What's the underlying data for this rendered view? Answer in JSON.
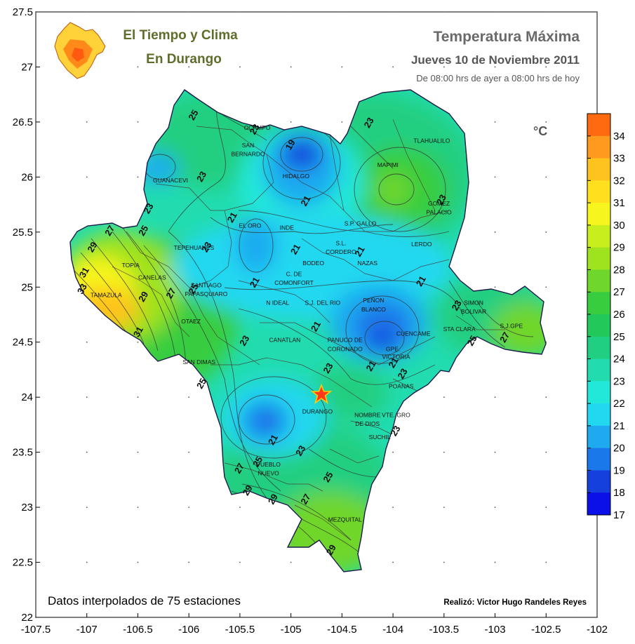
{
  "header": {
    "brand_line1": "El Tiempo y Clima",
    "brand_line2": "En Durango",
    "title": "Temperatura  Máxima",
    "date": "Jueves 10 de Noviembre 2011",
    "period": "De 08:00 hrs de ayer a 08:00 hrs de hoy",
    "unit": "°C"
  },
  "footer": {
    "stations_note": "Datos interpolados de 75 estaciones",
    "credit": "Realizó: Victor Hugo Randeles Reyes"
  },
  "axes": {
    "x_ticks": [
      "-107.5",
      "-107",
      "-106.5",
      "-106",
      "-105.5",
      "-105",
      "-104.5",
      "-104",
      "-103.5",
      "-103",
      "-102.5",
      "-102"
    ],
    "y_ticks": [
      "27.5",
      "27",
      "26.5",
      "26",
      "25.5",
      "25",
      "24.5",
      "24",
      "23.5",
      "23",
      "22.5",
      "22"
    ]
  },
  "colorbar": {
    "labels": [
      "34",
      "33",
      "32",
      "31",
      "30",
      "29",
      "28",
      "27",
      "26",
      "25",
      "24",
      "23",
      "22",
      "21",
      "20",
      "19",
      "18",
      "17"
    ],
    "colors": [
      "#ff6a10",
      "#ff9a1e",
      "#ffc31f",
      "#ffe01e",
      "#f7f51e",
      "#c9ee1e",
      "#9fe21e",
      "#6fd62c",
      "#38cd3f",
      "#22c95a",
      "#20cf81",
      "#22dcb0",
      "#22e8da",
      "#22d8f0",
      "#1faaf0",
      "#1a78ea",
      "#1640dc",
      "#0c10e8"
    ],
    "values": [
      34,
      33,
      32,
      31,
      30,
      29,
      28,
      27,
      26,
      25,
      24,
      23,
      22,
      21,
      20,
      19,
      18,
      17
    ]
  },
  "map": {
    "region": "Durango",
    "capital_icon": "star-icon",
    "municipalities": [
      {
        "name": "OCAMPO",
        "lon": -105.33,
        "lat": 26.43
      },
      {
        "name": "SAN",
        "lon": -105.42,
        "lat": 26.27
      },
      {
        "name": "BERNARDO",
        "lon": -105.42,
        "lat": 26.19
      },
      {
        "name": "HIDALGO",
        "lon": -104.95,
        "lat": 25.99
      },
      {
        "name": "GUANACEVI",
        "lon": -106.18,
        "lat": 25.95
      },
      {
        "name": "TLAHUALILO",
        "lon": -103.62,
        "lat": 26.31
      },
      {
        "name": "MAPIMI",
        "lon": -104.05,
        "lat": 26.09
      },
      {
        "name": "GOMEZ",
        "lon": -103.55,
        "lat": 25.74
      },
      {
        "name": "PALACIO",
        "lon": -103.55,
        "lat": 25.66
      },
      {
        "name": "S.P. GALLO",
        "lon": -104.32,
        "lat": 25.56
      },
      {
        "name": "EL ORO",
        "lon": -105.4,
        "lat": 25.54
      },
      {
        "name": "INDE",
        "lon": -105.04,
        "lat": 25.52
      },
      {
        "name": "TEPEHUANES",
        "lon": -105.95,
        "lat": 25.34
      },
      {
        "name": "S.L.",
        "lon": -104.51,
        "lat": 25.38
      },
      {
        "name": "CORDERO",
        "lon": -104.51,
        "lat": 25.3
      },
      {
        "name": "LERDO",
        "lon": -103.72,
        "lat": 25.37
      },
      {
        "name": "TOPIA",
        "lon": -106.57,
        "lat": 25.18
      },
      {
        "name": "BODEO",
        "lon": -104.78,
        "lat": 25.2
      },
      {
        "name": "NAZAS",
        "lon": -104.25,
        "lat": 25.2
      },
      {
        "name": "C. DE",
        "lon": -104.97,
        "lat": 25.1
      },
      {
        "name": "COMONFORT",
        "lon": -104.97,
        "lat": 25.02
      },
      {
        "name": "CANELAS",
        "lon": -106.36,
        "lat": 25.07
      },
      {
        "name": "SANTIAGO",
        "lon": -105.83,
        "lat": 25.0
      },
      {
        "name": "PAPASQUIARO",
        "lon": -105.83,
        "lat": 24.92
      },
      {
        "name": "TAMAZULA",
        "lon": -106.81,
        "lat": 24.91
      },
      {
        "name": "N IDEAL",
        "lon": -105.13,
        "lat": 24.84
      },
      {
        "name": "S.J. DEL RIO",
        "lon": -104.69,
        "lat": 24.84
      },
      {
        "name": "PEÑON",
        "lon": -104.19,
        "lat": 24.86
      },
      {
        "name": "BLANCO",
        "lon": -104.19,
        "lat": 24.78
      },
      {
        "name": "SIMON",
        "lon": -103.21,
        "lat": 24.84
      },
      {
        "name": "BOLIVAR",
        "lon": -103.21,
        "lat": 24.76
      },
      {
        "name": "OTAEZ",
        "lon": -105.98,
        "lat": 24.67
      },
      {
        "name": "STA CLARA",
        "lon": -103.35,
        "lat": 24.6
      },
      {
        "name": "S.J.GPE",
        "lon": -102.84,
        "lat": 24.63
      },
      {
        "name": "CUENCAME",
        "lon": -103.8,
        "lat": 24.56
      },
      {
        "name": "CANATLAN",
        "lon": -105.06,
        "lat": 24.5
      },
      {
        "name": "PANUCO DE",
        "lon": -104.47,
        "lat": 24.5
      },
      {
        "name": "CORONADO",
        "lon": -104.47,
        "lat": 24.42
      },
      {
        "name": "GPE.",
        "lon": -104.0,
        "lat": 24.42
      },
      {
        "name": "VICTORIA",
        "lon": -103.97,
        "lat": 24.35
      },
      {
        "name": "SAN DIMAS",
        "lon": -105.9,
        "lat": 24.3
      },
      {
        "name": "POANAS",
        "lon": -103.92,
        "lat": 24.08
      },
      {
        "name": "DURANGO",
        "lon": -104.74,
        "lat": 23.85
      },
      {
        "name": "NOMBRE",
        "lon": -104.25,
        "lat": 23.82
      },
      {
        "name": "DE DIOS",
        "lon": -104.25,
        "lat": 23.74
      },
      {
        "name": "VTE. GRO",
        "lon": -103.97,
        "lat": 23.82
      },
      {
        "name": "SUCHIL",
        "lon": -104.13,
        "lat": 23.62
      },
      {
        "name": "PUEBLO",
        "lon": -105.22,
        "lat": 23.37
      },
      {
        "name": "NUEVO",
        "lon": -105.22,
        "lat": 23.29
      },
      {
        "name": "MEZQUITAL",
        "lon": -104.47,
        "lat": 22.87
      }
    ],
    "isotherm_labels": [
      {
        "text": "25",
        "lon": -105.93,
        "lat": 26.55
      },
      {
        "text": "23",
        "lon": -105.33,
        "lat": 26.42
      },
      {
        "text": "19",
        "lon": -104.98,
        "lat": 26.28
      },
      {
        "text": "23",
        "lon": -104.21,
        "lat": 26.48
      },
      {
        "text": "23",
        "lon": -105.85,
        "lat": 25.99
      },
      {
        "text": "23",
        "lon": -106.37,
        "lat": 25.7
      },
      {
        "text": "21",
        "lon": -104.83,
        "lat": 25.77
      },
      {
        "text": "21",
        "lon": -105.55,
        "lat": 25.62
      },
      {
        "text": "23",
        "lon": -103.5,
        "lat": 25.78
      },
      {
        "text": "25",
        "lon": -106.42,
        "lat": 25.5
      },
      {
        "text": "27",
        "lon": -106.75,
        "lat": 25.5
      },
      {
        "text": "29",
        "lon": -106.92,
        "lat": 25.35
      },
      {
        "text": "31",
        "lon": -107.0,
        "lat": 25.12
      },
      {
        "text": "33",
        "lon": -107.02,
        "lat": 24.97
      },
      {
        "text": "29",
        "lon": -106.42,
        "lat": 24.9
      },
      {
        "text": "27",
        "lon": -106.15,
        "lat": 24.93
      },
      {
        "text": "25",
        "lon": -105.93,
        "lat": 24.97
      },
      {
        "text": "23",
        "lon": -105.8,
        "lat": 25.35
      },
      {
        "text": "21",
        "lon": -104.93,
        "lat": 25.33
      },
      {
        "text": "21",
        "lon": -104.3,
        "lat": 25.31
      },
      {
        "text": "21",
        "lon": -105.33,
        "lat": 25.03
      },
      {
        "text": "21",
        "lon": -103.7,
        "lat": 25.04
      },
      {
        "text": "31",
        "lon": -106.47,
        "lat": 24.58
      },
      {
        "text": "21",
        "lon": -104.73,
        "lat": 24.63
      },
      {
        "text": "23",
        "lon": -105.43,
        "lat": 24.5
      },
      {
        "text": "23",
        "lon": -103.35,
        "lat": 24.82
      },
      {
        "text": "25",
        "lon": -103.2,
        "lat": 24.5
      },
      {
        "text": "27",
        "lon": -102.88,
        "lat": 24.53
      },
      {
        "text": "21",
        "lon": -104.19,
        "lat": 24.27
      },
      {
        "text": "21",
        "lon": -103.97,
        "lat": 24.3
      },
      {
        "text": "23",
        "lon": -104.61,
        "lat": 24.25
      },
      {
        "text": "23",
        "lon": -103.88,
        "lat": 24.2
      },
      {
        "text": "25",
        "lon": -105.85,
        "lat": 24.11
      },
      {
        "text": "21",
        "lon": -105.15,
        "lat": 23.6
      },
      {
        "text": "23",
        "lon": -104.88,
        "lat": 23.5
      },
      {
        "text": "23",
        "lon": -103.95,
        "lat": 23.68
      },
      {
        "text": "25",
        "lon": -105.3,
        "lat": 23.4
      },
      {
        "text": "27",
        "lon": -105.48,
        "lat": 23.34
      },
      {
        "text": "25",
        "lon": -104.61,
        "lat": 23.26
      },
      {
        "text": "29",
        "lon": -105.4,
        "lat": 23.14
      },
      {
        "text": "29",
        "lon": -105.15,
        "lat": 23.06
      },
      {
        "text": "27",
        "lon": -104.83,
        "lat": 23.06
      },
      {
        "text": "29",
        "lon": -104.58,
        "lat": 22.6
      }
    ]
  }
}
